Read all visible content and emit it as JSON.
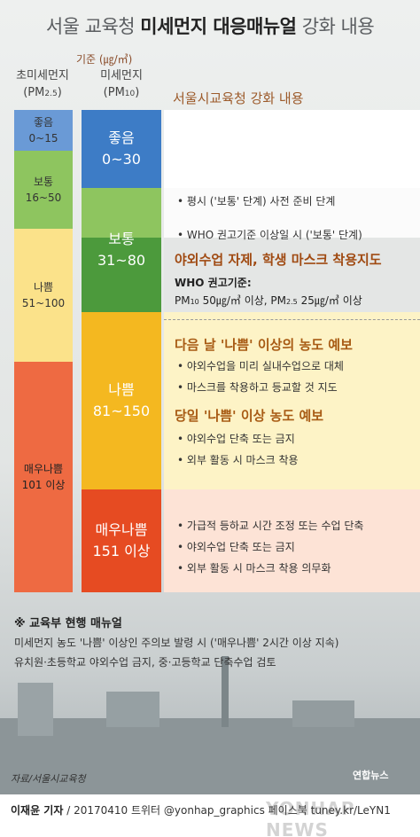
{
  "header": {
    "title_plain": "서울 교육청",
    "title_bold": "미세먼지 대응매뉴얼",
    "title_plain2": "강화 내용",
    "unit": "기준 (㎍/㎥)"
  },
  "columns": {
    "pm25_line1": "초미세먼지",
    "pm25_line2_open": "(PM",
    "pm25_line2_sub": "2.5",
    "pm25_line2_close": ")",
    "pm10_line1": "미세먼지",
    "pm10_line2_open": "(PM",
    "pm10_line2_sub": "10",
    "pm10_line2_close": ")",
    "section_title": "서울시교육청 강화 내용"
  },
  "pm25_bands": [
    {
      "name": "좋음",
      "range": "0~15",
      "color": "#6a9ad6"
    },
    {
      "name": "보통",
      "range": "16~50",
      "color": "#8ec55f"
    },
    {
      "name": "나쁨",
      "range": "51~100",
      "color": "#fbe28a"
    },
    {
      "name": "매우나쁨",
      "range": "101 이상",
      "color": "#ee6a42"
    }
  ],
  "pm10_bands": [
    {
      "name": "좋음",
      "range": "0~30",
      "color": "#3d7cc6"
    },
    {
      "name": "보통",
      "range": "31~80",
      "color": "#4c9a3c"
    },
    {
      "name": "나쁨",
      "range": "81~150",
      "color": "#f4b820"
    },
    {
      "name": "매우나쁨",
      "range": "151 이상",
      "color": "#e64b22"
    }
  ],
  "measures": {
    "normal_bullets": [
      "평시 ('보통' 단계) 사전 준비 단계",
      "WHO 권고기준 이상일 시 ('보통' 단계)"
    ],
    "who_headline": "야외수업 자제, 학생 마스크 착용지도",
    "who_label": "WHO 권고기준:",
    "who_pm10_open": "PM",
    "who_pm10_sub": "10",
    "who_pm10_val": " 50㎍/㎥ 이상, PM",
    "who_pm25_sub": "2.5",
    "who_pm25_val": " 25㎍/㎥ 이상",
    "bad_headline1": "다음 날 '나쁨' 이상의 농도 예보",
    "bad_bullets1": [
      "야외수업을 미리 실내수업으로 대체",
      "마스크를 착용하고 등교할 것 지도"
    ],
    "bad_headline2": "당일 '나쁨' 이상 농도 예보",
    "bad_bullets2": [
      "야외수업 단축 또는 금지",
      "외부 활동 시 마스크 착용"
    ],
    "very_bad_bullets": [
      "가급적 등하교 시간 조정 또는 수업 단축",
      "야외수업 단축 또는 금지",
      "외부 활동 시 마스크 착용 의무화"
    ]
  },
  "note": {
    "title": "※ 교육부 현행 매뉴얼",
    "line1": "미세먼지 농도 '나쁨' 이상인 주의보 발령 시 ('매우나쁨' 2시간 이상 지속)",
    "line2": "유치원·초등학교 야외수업 금지, 중·고등학교 단축수업 검토"
  },
  "footer": {
    "source": "자료/서울시교육청",
    "logo": "연합뉴스",
    "author": "이재윤 기자",
    "credit": " / 20170410   트위터 @yonhap_graphics  페이스북 tuney.kr/LeYN1",
    "watermark": "YONHAP NEWS"
  }
}
